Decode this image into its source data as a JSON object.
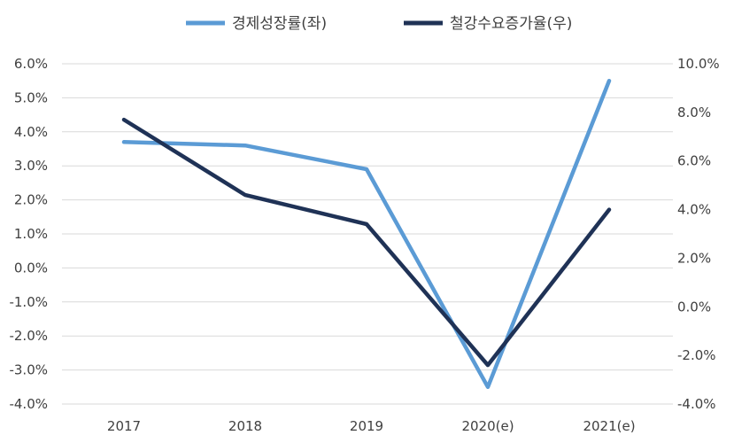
{
  "chart_data": {
    "type": "line",
    "categories": [
      "2017",
      "2018",
      "2019",
      "2020(e)",
      "2021(e)"
    ],
    "series": [
      {
        "name": "경제성장률(좌)",
        "axis": "left",
        "color": "#5b9bd5",
        "values": [
          3.7,
          3.6,
          2.9,
          -3.5,
          5.5
        ]
      },
      {
        "name": "철강수요증가율(우)",
        "axis": "right",
        "color": "#1f3256",
        "values": [
          7.7,
          4.6,
          3.4,
          -2.4,
          4.0
        ]
      }
    ],
    "y_left": {
      "lim": [
        -4,
        6
      ],
      "ticks": [
        6,
        5,
        4,
        3,
        2,
        1,
        0,
        -1,
        -2,
        -3,
        -4
      ],
      "tick_labels": [
        "6.0%",
        "5.0%",
        "4.0%",
        "3.0%",
        "2.0%",
        "1.0%",
        "0.0%",
        "-1.0%",
        "-2.0%",
        "-3.0%",
        "-4.0%"
      ]
    },
    "y_right": {
      "lim": [
        -4,
        10
      ],
      "ticks": [
        10,
        8,
        6,
        4,
        2,
        0,
        -2,
        -4
      ],
      "tick_labels": [
        "10.0%",
        "8.0%",
        "6.0%",
        "4.0%",
        "2.0%",
        "0.0%",
        "-2.0%",
        "-4.0%"
      ]
    },
    "grid": true,
    "legend_position": "top"
  }
}
